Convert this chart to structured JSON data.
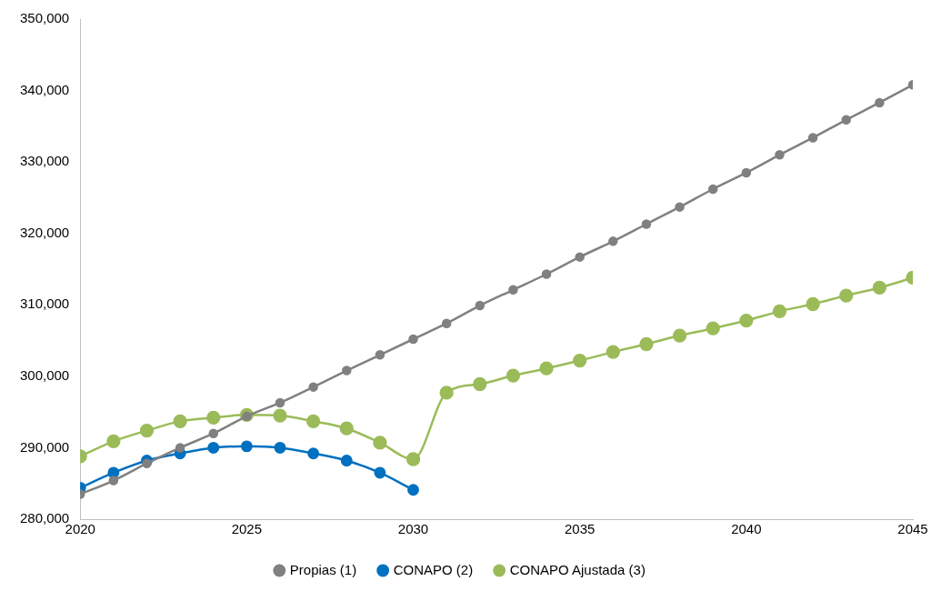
{
  "chart_data": {
    "type": "line",
    "x": [
      2020,
      2021,
      2022,
      2023,
      2024,
      2025,
      2026,
      2027,
      2028,
      2029,
      2030,
      2031,
      2032,
      2033,
      2034,
      2035,
      2036,
      2037,
      2038,
      2039,
      2040,
      2041,
      2042,
      2043,
      2044,
      2045
    ],
    "series": [
      {
        "name": "Propias (1)",
        "color": "#808080",
        "values": [
          283500,
          285400,
          287800,
          290000,
          292000,
          294400,
          296300,
          298500,
          300800,
          303000,
          305200,
          307400,
          309900,
          312100,
          314300,
          316700,
          318900,
          321300,
          323700,
          326200,
          328500,
          331000,
          333400,
          335900,
          338300,
          340800
        ]
      },
      {
        "name": "CONAPO (2)",
        "color": "#0070c0",
        "values": [
          284400,
          286500,
          288200,
          289200,
          290000,
          290200,
          290000,
          289200,
          288200,
          286500,
          284100,
          null,
          null,
          null,
          null,
          null,
          null,
          null,
          null,
          null,
          null,
          null,
          null,
          null,
          null,
          null
        ]
      },
      {
        "name": "CONAPO Ajustada (3)",
        "color": "#9bbb59",
        "values": [
          288800,
          290900,
          292400,
          293700,
          294200,
          294600,
          294500,
          293700,
          292700,
          290700,
          288400,
          297700,
          298900,
          300100,
          301100,
          302200,
          303400,
          304500,
          305700,
          306700,
          307800,
          309100,
          310100,
          311300,
          312400,
          313800
        ]
      }
    ],
    "xlim": [
      2020,
      2045
    ],
    "xticks": [
      2020,
      2025,
      2030,
      2035,
      2040,
      2045
    ],
    "ylim": [
      280000,
      350000
    ],
    "yticks": [
      {
        "value": 280000,
        "label": "280,000"
      },
      {
        "value": 290000,
        "label": "290,000"
      },
      {
        "value": 300000,
        "label": "300,000"
      },
      {
        "value": 310000,
        "label": "310,000"
      },
      {
        "value": 320000,
        "label": "320,000"
      },
      {
        "value": 330000,
        "label": "330,000"
      },
      {
        "value": 340000,
        "label": "340,000"
      },
      {
        "value": 350000,
        "label": "350,000"
      }
    ],
    "grid": false,
    "legend": "bottom",
    "marker": "circle",
    "line_style": "solid"
  }
}
